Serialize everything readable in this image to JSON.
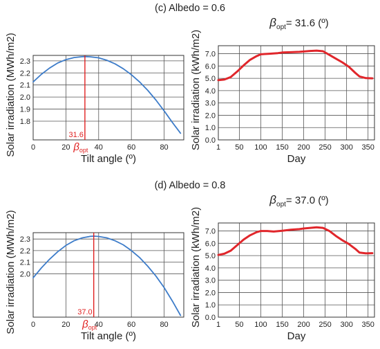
{
  "figure": {
    "panels": [
      {
        "label": "(c) Albedo = 0.6"
      },
      {
        "label": "(d) Albedo = 0.8"
      }
    ]
  },
  "colors": {
    "curve_blue": "#3d7cc9",
    "curve_red": "#e0262b",
    "marker_red": "#e02020",
    "grid": "#555555",
    "text": "#222222"
  },
  "chart_data": [
    {
      "type": "line",
      "panel": "(c) Albedo = 0.6",
      "xlabel": "Tilt angle (º)",
      "ylabel": "Solar irradiation (MWh/m2)",
      "x_ticks": [
        0,
        20,
        40,
        60,
        80
      ],
      "y_ticks": [
        1.8,
        1.9,
        2.0,
        2.1,
        2.2,
        2.3
      ],
      "y_tick_labels": [
        "1.8",
        "1.9",
        "2.0",
        "2.1",
        "2.2",
        "2.3"
      ],
      "xlim": [
        0,
        92
      ],
      "ylim": [
        1.645,
        2.345
      ],
      "grid": true,
      "series": [
        {
          "color": "#3d7cc9",
          "x": [
            0,
            5,
            10,
            15,
            20,
            25,
            30,
            31.6,
            35,
            40,
            45,
            50,
            55,
            60,
            65,
            70,
            75,
            80,
            85,
            90
          ],
          "y": [
            2.125,
            2.188,
            2.24,
            2.282,
            2.31,
            2.327,
            2.334,
            2.335,
            2.333,
            2.325,
            2.305,
            2.275,
            2.235,
            2.185,
            2.125,
            2.055,
            1.975,
            1.885,
            1.79,
            1.7
          ]
        }
      ],
      "optimum": {
        "value": 31.6,
        "value_label": "31.6",
        "symbol": "β",
        "subscript": "opt"
      }
    },
    {
      "type": "line",
      "panel": "(c) Albedo = 0.6",
      "title_symbol": "β",
      "title_subscript": "opt",
      "title_rest": "= 31.6 (º)",
      "xlabel": "Day",
      "ylabel": "Solar irradiation (kWh/m2)",
      "x_ticks": [
        1,
        50,
        100,
        150,
        200,
        250,
        300,
        350
      ],
      "y_ticks": [
        0.0,
        1.0,
        2.0,
        3.0,
        4.0,
        5.0,
        6.0,
        7.0
      ],
      "y_tick_labels": [
        "0.0",
        "1.0",
        "2.0",
        "3.0",
        "4.0",
        "5.0",
        "6.0",
        "7.0"
      ],
      "xlim": [
        1,
        365
      ],
      "ylim": [
        0,
        7.65
      ],
      "grid": true,
      "series": [
        {
          "color": "#e0262b",
          "x": [
            1,
            15,
            30,
            45,
            60,
            75,
            90,
            100,
            120,
            140,
            150,
            170,
            190,
            200,
            215,
            230,
            245,
            260,
            275,
            290,
            305,
            320,
            330,
            345,
            360
          ],
          "y": [
            4.85,
            4.9,
            5.1,
            5.55,
            6.05,
            6.5,
            6.8,
            6.95,
            7.0,
            7.05,
            7.1,
            7.12,
            7.15,
            7.18,
            7.22,
            7.25,
            7.2,
            6.9,
            6.6,
            6.3,
            5.95,
            5.45,
            5.15,
            5.02,
            5.0
          ]
        }
      ]
    },
    {
      "type": "line",
      "panel": "(d) Albedo = 0.8",
      "xlabel": "Tilt angle (º)",
      "ylabel": "Solar irradiation (MWh/m2)",
      "x_ticks": [
        0,
        20,
        40,
        60,
        80
      ],
      "y_ticks": [
        2.0,
        2.1,
        2.2,
        2.3
      ],
      "y_tick_labels": [
        "2.0",
        "2.1",
        "2.2",
        "2.3"
      ],
      "xlim": [
        0,
        92
      ],
      "ylim": [
        1.625,
        2.355
      ],
      "grid": true,
      "series": [
        {
          "color": "#3d7cc9",
          "x": [
            0,
            5,
            10,
            15,
            20,
            25,
            30,
            35,
            37,
            40,
            45,
            50,
            55,
            60,
            65,
            70,
            75,
            80,
            85,
            90
          ],
          "y": [
            1.965,
            2.05,
            2.125,
            2.19,
            2.245,
            2.285,
            2.31,
            2.323,
            2.325,
            2.322,
            2.31,
            2.285,
            2.25,
            2.2,
            2.14,
            2.065,
            1.98,
            1.88,
            1.765,
            1.64
          ]
        }
      ],
      "optimum": {
        "value": 37.0,
        "value_label": "37.0",
        "symbol": "β",
        "subscript": "opt"
      }
    },
    {
      "type": "line",
      "panel": "(d) Albedo = 0.8",
      "title_symbol": "β",
      "title_subscript": "opt",
      "title_rest": "= 37.0 (º)",
      "xlabel": "Day",
      "ylabel": "Solar irradiation (kWh/m2)",
      "x_ticks": [
        1,
        50,
        100,
        150,
        200,
        250,
        300,
        350
      ],
      "y_ticks": [
        0.0,
        1.0,
        2.0,
        3.0,
        4.0,
        5.0,
        6.0,
        7.0
      ],
      "y_tick_labels": [
        "0.0",
        "1.0",
        "2.0",
        "3.0",
        "4.0",
        "5.0",
        "6.0",
        "7.0"
      ],
      "xlim": [
        1,
        365
      ],
      "ylim": [
        0,
        7.65
      ],
      "grid": true,
      "series": [
        {
          "color": "#e0262b",
          "x": [
            1,
            15,
            30,
            45,
            60,
            75,
            90,
            100,
            115,
            130,
            150,
            170,
            190,
            200,
            215,
            230,
            245,
            260,
            275,
            290,
            305,
            320,
            330,
            345,
            360
          ],
          "y": [
            5.05,
            5.15,
            5.4,
            5.85,
            6.3,
            6.65,
            6.9,
            7.0,
            7.0,
            6.95,
            7.02,
            7.1,
            7.15,
            7.2,
            7.25,
            7.3,
            7.25,
            7.0,
            6.6,
            6.25,
            5.95,
            5.55,
            5.25,
            5.18,
            5.2
          ]
        }
      ]
    }
  ]
}
